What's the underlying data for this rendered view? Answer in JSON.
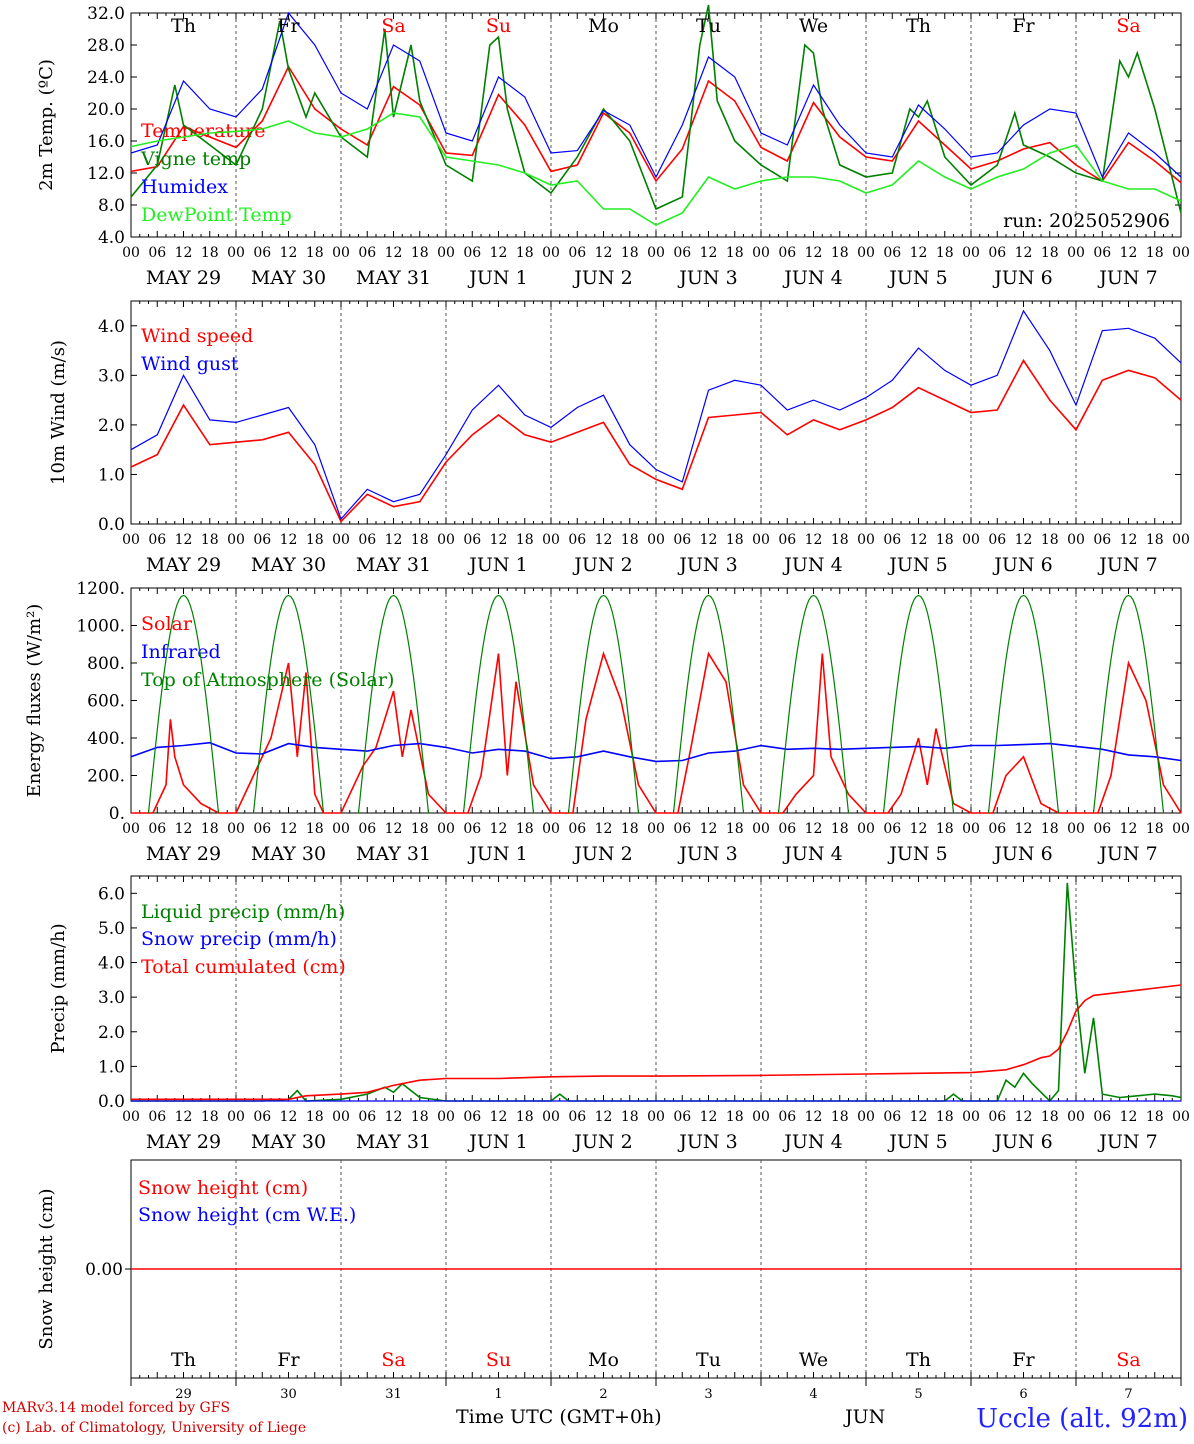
{
  "run_label": "run: 2025052906",
  "days_top": [
    {
      "label": "Th",
      "color": "#000000"
    },
    {
      "label": "Fr",
      "color": "#000000"
    },
    {
      "label": "Sa",
      "color": "#ff0000"
    },
    {
      "label": "Su",
      "color": "#ff0000"
    },
    {
      "label": "Mo",
      "color": "#000000"
    },
    {
      "label": "Tu",
      "color": "#000000"
    },
    {
      "label": "We",
      "color": "#000000"
    },
    {
      "label": "Th",
      "color": "#000000"
    },
    {
      "label": "Fr",
      "color": "#000000"
    },
    {
      "label": "Sa",
      "color": "#ff0000"
    }
  ],
  "hour_ticks": [
    "00",
    "06",
    "12",
    "18"
  ],
  "date_labels": [
    "MAY 29",
    "MAY 30",
    "MAY 31",
    "JUN  1",
    "JUN  2",
    "JUN  3",
    "JUN  4",
    "JUN  5",
    "JUN  6",
    "JUN  7"
  ],
  "bottom_day_numbers": [
    "29",
    "30",
    "31",
    "1",
    "2",
    "3",
    "4",
    "5",
    "6",
    "7"
  ],
  "footer": {
    "credit1": "MARv3.14 model forced by GFS",
    "credit2": "(c) Lab. of Climatology, University of Liege",
    "xlabel": "Time UTC (GMT+0h)",
    "month": "JUN",
    "station": "Uccle (alt. 92m)"
  },
  "colors": {
    "red": "#ff0000",
    "green": "#008000",
    "blue": "#0000ff",
    "lightgreen": "#22ee22"
  },
  "chart_data": [
    {
      "type": "line",
      "ylabel": "2m Temp. (ºC)",
      "ylim": [
        4,
        32
      ],
      "yticks": [
        "4.0",
        "8.0",
        "12.0",
        "16.0",
        "20.0",
        "24.0",
        "28.0",
        "32.0"
      ],
      "x_unit": "hours since May 29 00 UTC",
      "series": [
        {
          "name": "Temperature",
          "color": "#ff0000",
          "x": [
            0,
            6,
            12,
            18,
            24,
            30,
            36,
            42,
            48,
            54,
            60,
            66,
            72,
            78,
            84,
            90,
            96,
            102,
            108,
            114,
            120,
            126,
            132,
            138,
            144,
            150,
            156,
            162,
            168,
            174,
            180,
            186,
            192,
            198,
            204,
            210,
            216,
            222,
            228,
            234,
            240
          ],
          "y": [
            12.2,
            12.8,
            17.8,
            16.5,
            15.2,
            18.5,
            25.3,
            20,
            17.5,
            15.5,
            22.8,
            20.5,
            14.5,
            14.2,
            21.8,
            18,
            12.2,
            13,
            19.5,
            17,
            11,
            15,
            23.5,
            21,
            15.2,
            13.5,
            20.8,
            16.5,
            14,
            13.5,
            18.5,
            15.5,
            12.5,
            13.5,
            15,
            15.8,
            13,
            11,
            15.8,
            13.5,
            10.8
          ]
        },
        {
          "name": "Vigne temp",
          "color": "#008000",
          "x": [
            0,
            6,
            10,
            12,
            18,
            24,
            30,
            34,
            36,
            40,
            42,
            48,
            54,
            58,
            60,
            64,
            66,
            72,
            78,
            82,
            84,
            86,
            90,
            96,
            102,
            108,
            114,
            120,
            126,
            130,
            132,
            134,
            138,
            144,
            150,
            154,
            156,
            158,
            162,
            168,
            174,
            178,
            180,
            182,
            186,
            192,
            198,
            202,
            204,
            210,
            216,
            222,
            226,
            228,
            230,
            234,
            240
          ],
          "y": [
            9,
            13,
            23,
            18,
            15.5,
            13,
            20,
            31,
            25,
            19,
            22,
            16.5,
            14,
            30,
            19,
            28,
            21,
            13,
            11,
            28,
            29,
            20,
            12,
            9.5,
            14,
            20,
            16,
            7.5,
            9,
            28,
            33,
            21,
            16,
            13,
            11,
            28,
            27,
            20,
            13,
            11.5,
            12,
            20,
            19,
            21,
            14,
            10.5,
            13,
            19.5,
            15.5,
            14,
            12,
            11,
            26,
            24,
            27,
            20,
            7
          ]
        },
        {
          "name": "Humidex",
          "color": "#0000ff",
          "x": [
            0,
            6,
            12,
            18,
            24,
            30,
            36,
            42,
            48,
            54,
            60,
            66,
            72,
            78,
            84,
            90,
            96,
            102,
            108,
            114,
            120,
            126,
            132,
            138,
            144,
            150,
            156,
            162,
            168,
            174,
            180,
            186,
            192,
            198,
            204,
            210,
            216,
            222,
            228,
            234,
            240
          ],
          "y": [
            14.5,
            15.5,
            23.5,
            20,
            19,
            22.5,
            32,
            28,
            22,
            20,
            28,
            26,
            17,
            16,
            24,
            21.5,
            14.5,
            14.8,
            19.8,
            18,
            11.5,
            18,
            26.5,
            24,
            17,
            15.5,
            23,
            18,
            14.5,
            14,
            20.5,
            17.5,
            14,
            14.5,
            18,
            20,
            19.5,
            11.5,
            17,
            14.5,
            11.5
          ]
        },
        {
          "name": "DewPoint Temp",
          "color": "#22ee22",
          "x": [
            0,
            6,
            12,
            18,
            24,
            30,
            36,
            42,
            48,
            54,
            60,
            66,
            72,
            78,
            84,
            90,
            96,
            102,
            108,
            114,
            120,
            126,
            132,
            138,
            144,
            150,
            156,
            162,
            168,
            174,
            180,
            186,
            192,
            198,
            204,
            210,
            216,
            222,
            228,
            234,
            240
          ],
          "y": [
            15.3,
            16,
            16.5,
            17,
            17.2,
            17.5,
            18.5,
            17,
            16.5,
            17.5,
            19.5,
            19,
            14,
            13.5,
            13,
            12,
            10.5,
            11,
            7.5,
            7.5,
            5.5,
            7,
            11.5,
            10,
            11,
            11.5,
            11.5,
            11,
            9.5,
            10.5,
            13.5,
            11.5,
            10,
            11.5,
            12.5,
            14.5,
            15.5,
            11,
            10,
            10,
            8.5
          ]
        }
      ]
    },
    {
      "type": "line",
      "ylabel": "10m Wind (m/s)",
      "ylim": [
        0,
        4.5
      ],
      "yticks": [
        "0.0",
        "1.0",
        "2.0",
        "3.0",
        "4.0"
      ],
      "x_unit": "hours since May 29 00 UTC",
      "series": [
        {
          "name": "Wind speed",
          "color": "#ff0000",
          "x": [
            0,
            6,
            12,
            18,
            24,
            30,
            36,
            42,
            48,
            54,
            60,
            66,
            72,
            78,
            84,
            90,
            96,
            102,
            108,
            114,
            120,
            126,
            132,
            138,
            144,
            150,
            156,
            162,
            168,
            174,
            180,
            186,
            192,
            198,
            204,
            210,
            216,
            222,
            228,
            234,
            240
          ],
          "y": [
            1.15,
            1.4,
            2.4,
            1.6,
            1.65,
            1.7,
            1.85,
            1.2,
            0.05,
            0.6,
            0.35,
            0.45,
            1.25,
            1.8,
            2.2,
            1.8,
            1.65,
            1.85,
            2.05,
            1.2,
            0.9,
            0.7,
            2.15,
            2.2,
            2.25,
            1.8,
            2.1,
            1.9,
            2.1,
            2.35,
            2.75,
            2.5,
            2.25,
            2.3,
            3.3,
            2.5,
            1.9,
            2.9,
            3.1,
            2.95,
            2.5
          ]
        },
        {
          "name": "Wind gust",
          "color": "#0000ff",
          "x": [
            0,
            6,
            12,
            18,
            24,
            30,
            36,
            42,
            48,
            54,
            60,
            66,
            72,
            78,
            84,
            90,
            96,
            102,
            108,
            114,
            120,
            126,
            132,
            138,
            144,
            150,
            156,
            162,
            168,
            174,
            180,
            186,
            192,
            198,
            204,
            210,
            216,
            222,
            228,
            234,
            240
          ],
          "y": [
            1.5,
            1.8,
            3.0,
            2.1,
            2.05,
            2.2,
            2.35,
            1.6,
            0.1,
            0.7,
            0.45,
            0.6,
            1.4,
            2.3,
            2.8,
            2.2,
            1.95,
            2.35,
            2.6,
            1.6,
            1.1,
            0.85,
            2.7,
            2.9,
            2.8,
            2.3,
            2.5,
            2.3,
            2.55,
            2.9,
            3.55,
            3.1,
            2.8,
            3.0,
            4.3,
            3.5,
            2.4,
            3.9,
            3.95,
            3.75,
            3.25
          ]
        }
      ]
    },
    {
      "type": "line",
      "ylabel": "Energy fluxes (W/m²)",
      "ylim": [
        0,
        1200
      ],
      "yticks": [
        "0.",
        "200.",
        "400.",
        "600.",
        "800.",
        "1000.",
        "1200."
      ],
      "x_unit": "hours since May 29 00 UTC",
      "series": [
        {
          "name": "Solar",
          "color": "#ff0000",
          "x": [
            0,
            5,
            8,
            9,
            10,
            12,
            16,
            20,
            24,
            29,
            32,
            36,
            38,
            40,
            42,
            44,
            48,
            53,
            56,
            60,
            62,
            64,
            68,
            72,
            77,
            80,
            84,
            86,
            88,
            92,
            96,
            101,
            104,
            108,
            112,
            116,
            120,
            125,
            128,
            132,
            136,
            140,
            144,
            149,
            152,
            156,
            158,
            160,
            164,
            168,
            173,
            176,
            180,
            182,
            184,
            188,
            192,
            197,
            200,
            204,
            208,
            212,
            216,
            221,
            224,
            228,
            232,
            236,
            240
          ],
          "y": [
            0,
            0,
            150,
            500,
            300,
            150,
            50,
            0,
            0,
            250,
            400,
            800,
            300,
            750,
            100,
            0,
            0,
            250,
            350,
            650,
            300,
            550,
            100,
            0,
            0,
            200,
            850,
            200,
            700,
            150,
            0,
            0,
            500,
            850,
            600,
            150,
            0,
            0,
            350,
            850,
            700,
            150,
            0,
            0,
            100,
            200,
            850,
            300,
            100,
            0,
            0,
            100,
            400,
            150,
            450,
            50,
            0,
            0,
            200,
            300,
            50,
            0,
            0,
            0,
            200,
            800,
            600,
            150,
            0
          ]
        },
        {
          "name": "Infrared",
          "color": "#0000ff",
          "x": [
            0,
            6,
            12,
            18,
            24,
            30,
            36,
            42,
            48,
            54,
            60,
            66,
            72,
            78,
            84,
            90,
            96,
            102,
            108,
            114,
            120,
            126,
            132,
            138,
            144,
            150,
            156,
            162,
            168,
            174,
            180,
            186,
            192,
            198,
            204,
            210,
            216,
            222,
            228,
            234,
            240
          ],
          "y": [
            300,
            350,
            360,
            375,
            320,
            315,
            370,
            350,
            340,
            330,
            360,
            370,
            350,
            320,
            340,
            330,
            290,
            300,
            330,
            300,
            275,
            280,
            320,
            330,
            360,
            340,
            345,
            340,
            345,
            350,
            355,
            345,
            360,
            360,
            365,
            370,
            355,
            340,
            310,
            300,
            280
          ]
        },
        {
          "name": "Top of Atmosphere (Solar)",
          "color": "#008000",
          "x": [],
          "y": [],
          "note": "daily bell curve 04-20 UTC, peak 1160 at 12 UTC"
        }
      ]
    },
    {
      "type": "line",
      "ylabel": "Precip (mm/h)",
      "ylim": [
        0,
        6.5
      ],
      "yticks": [
        "0.0",
        "1.0",
        "2.0",
        "3.0",
        "4.0",
        "5.0",
        "6.0"
      ],
      "x_unit": "hours since May 29 00 UTC",
      "series": [
        {
          "name": "Liquid precip (mm/h)",
          "color": "#008000",
          "x": [
            0,
            30,
            36,
            38,
            40,
            48,
            54,
            58,
            60,
            62,
            64,
            66,
            72,
            96,
            98,
            100,
            144,
            186,
            188,
            190,
            192,
            198,
            200,
            202,
            204,
            206,
            210,
            212,
            214,
            216,
            218,
            220,
            222,
            226,
            230,
            234,
            238,
            240
          ],
          "y": [
            0,
            0,
            0.05,
            0.3,
            0,
            0.05,
            0.2,
            0.4,
            0.25,
            0.5,
            0.3,
            0.1,
            0,
            0,
            0.2,
            0,
            0,
            0,
            0.2,
            0,
            0,
            0,
            0.6,
            0.4,
            0.8,
            0.5,
            0,
            0.3,
            6.3,
            3.2,
            0.8,
            2.4,
            0.2,
            0.1,
            0.15,
            0.2,
            0.15,
            0.1
          ]
        },
        {
          "name": "Snow precip (mm/h)",
          "color": "#0000ff",
          "x": [
            0,
            240
          ],
          "y": [
            0,
            0
          ]
        },
        {
          "name": "Total cumulated (cm)",
          "color": "#ff0000",
          "x": [
            0,
            36,
            40,
            48,
            54,
            60,
            66,
            72,
            84,
            96,
            108,
            120,
            144,
            168,
            192,
            200,
            204,
            206,
            208,
            210,
            212,
            214,
            216,
            218,
            220,
            240
          ],
          "y": [
            0.05,
            0.05,
            0.15,
            0.2,
            0.25,
            0.45,
            0.6,
            0.65,
            0.65,
            0.7,
            0.72,
            0.72,
            0.74,
            0.78,
            0.82,
            0.9,
            1.05,
            1.15,
            1.25,
            1.3,
            1.5,
            2.0,
            2.6,
            2.9,
            3.05,
            3.35
          ]
        }
      ]
    },
    {
      "type": "line",
      "ylabel": "Snow height (cm)",
      "ylim": [
        -1,
        1
      ],
      "yticks": [
        "0.00"
      ],
      "x_unit": "hours since May 29 00 UTC",
      "series": [
        {
          "name": "Snow height (cm)",
          "color": "#ff0000",
          "x": [
            0,
            240
          ],
          "y": [
            0,
            0
          ]
        },
        {
          "name": "Snow height (cm W.E.)",
          "color": "#0000ff",
          "x": [],
          "y": []
        }
      ]
    }
  ]
}
